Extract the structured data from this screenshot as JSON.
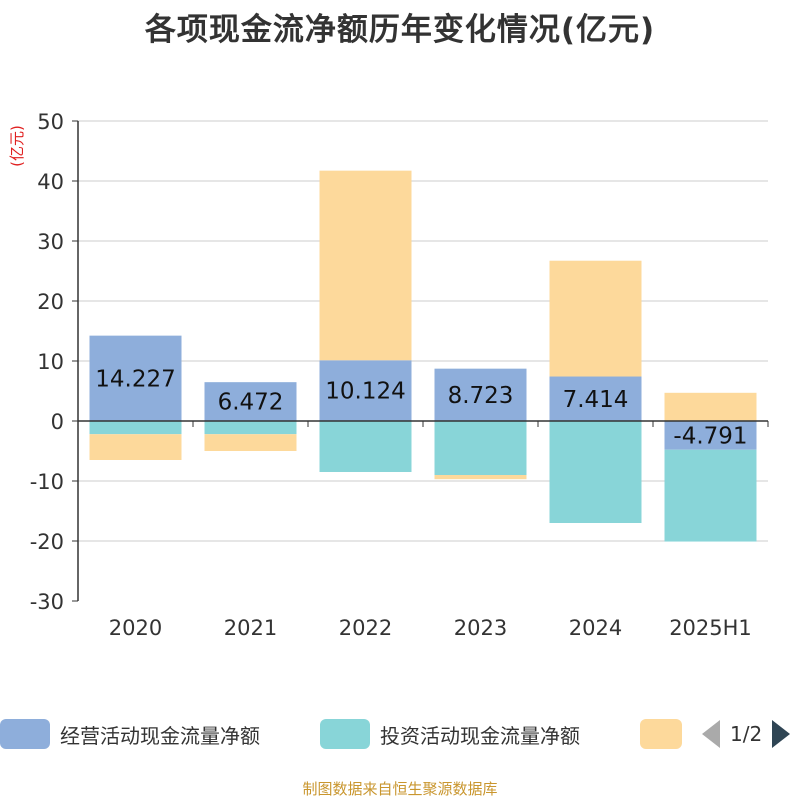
{
  "colors": {
    "operating": "#8eaedb",
    "investing": "#88d5d8",
    "financing": "#fdd99b",
    "grid": "#cccccc",
    "axis": "#333333",
    "unit": "#e02020"
  },
  "chart_data": {
    "type": "bar",
    "stacked": true,
    "title": "各项现金流净额历年变化情况(亿元)",
    "ylabel": "(亿元)",
    "categories": [
      "2020",
      "2021",
      "2022",
      "2023",
      "2024",
      "2025H1"
    ],
    "ylim": [
      -30,
      50
    ],
    "yticks": [
      -30,
      -20,
      -10,
      0,
      10,
      20,
      30,
      40,
      50
    ],
    "grid": true,
    "legend_position": "bottom",
    "series": [
      {
        "name": "经营活动现金流量净额",
        "values": [
          14.227,
          6.472,
          10.124,
          8.723,
          7.414,
          -4.791
        ],
        "labels": [
          "14.227",
          "6.472",
          "10.124",
          "8.723",
          "7.414",
          "-4.791"
        ]
      },
      {
        "name": "投资活动现金流量净额",
        "values": [
          -2.2,
          -2.2,
          -8.5,
          -9.0,
          -17.0,
          -15.3
        ]
      },
      {
        "name": "",
        "values": [
          -4.3,
          -2.8,
          31.6,
          -0.7,
          19.3,
          4.7
        ]
      }
    ]
  },
  "legend": {
    "page_indicator": "1/2"
  },
  "footer": {
    "source": "制图数据来自恒生聚源数据库"
  }
}
